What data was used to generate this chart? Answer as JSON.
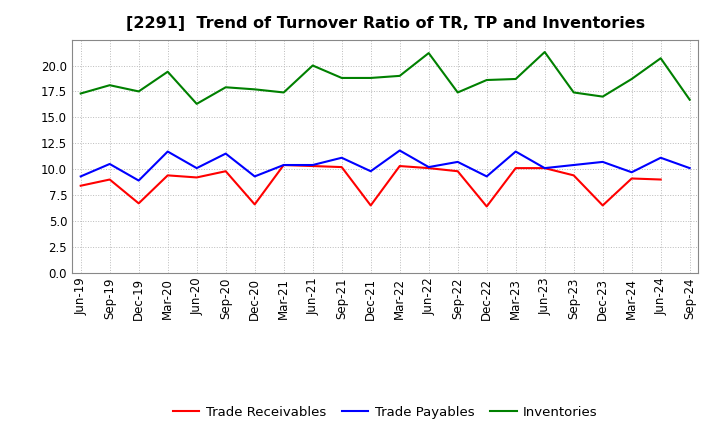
{
  "title": "[2291]  Trend of Turnover Ratio of TR, TP and Inventories",
  "x_labels": [
    "Jun-19",
    "Sep-19",
    "Dec-19",
    "Mar-20",
    "Jun-20",
    "Sep-20",
    "Dec-20",
    "Mar-21",
    "Jun-21",
    "Sep-21",
    "Dec-21",
    "Mar-22",
    "Jun-22",
    "Sep-22",
    "Dec-22",
    "Mar-23",
    "Jun-23",
    "Sep-23",
    "Dec-23",
    "Mar-24",
    "Jun-24",
    "Sep-24"
  ],
  "trade_receivables": [
    8.4,
    9.0,
    6.7,
    9.4,
    9.2,
    9.8,
    6.6,
    10.4,
    10.3,
    10.2,
    6.5,
    10.3,
    10.1,
    9.8,
    6.4,
    10.1,
    10.1,
    9.4,
    6.5,
    9.1,
    9.0,
    null
  ],
  "trade_payables": [
    9.3,
    10.5,
    8.9,
    11.7,
    10.1,
    11.5,
    9.3,
    10.4,
    10.4,
    11.1,
    9.8,
    11.8,
    10.2,
    10.7,
    9.3,
    11.7,
    10.1,
    10.4,
    10.7,
    9.7,
    11.1,
    10.1
  ],
  "inventories": [
    17.3,
    18.1,
    17.5,
    19.4,
    16.3,
    17.9,
    17.7,
    17.4,
    20.0,
    18.8,
    18.8,
    19.0,
    21.2,
    17.4,
    18.6,
    18.7,
    21.3,
    17.4,
    17.0,
    18.7,
    20.7,
    16.7
  ],
  "ylim": [
    0,
    22.5
  ],
  "yticks": [
    0.0,
    2.5,
    5.0,
    7.5,
    10.0,
    12.5,
    15.0,
    17.5,
    20.0
  ],
  "color_tr": "#ff0000",
  "color_tp": "#0000ff",
  "color_inv": "#008000",
  "legend_labels": [
    "Trade Receivables",
    "Trade Payables",
    "Inventories"
  ],
  "bg_color": "#ffffff",
  "grid_color": "#bbbbbb",
  "title_fontsize": 11.5,
  "axis_fontsize": 8.5,
  "legend_fontsize": 9.5
}
